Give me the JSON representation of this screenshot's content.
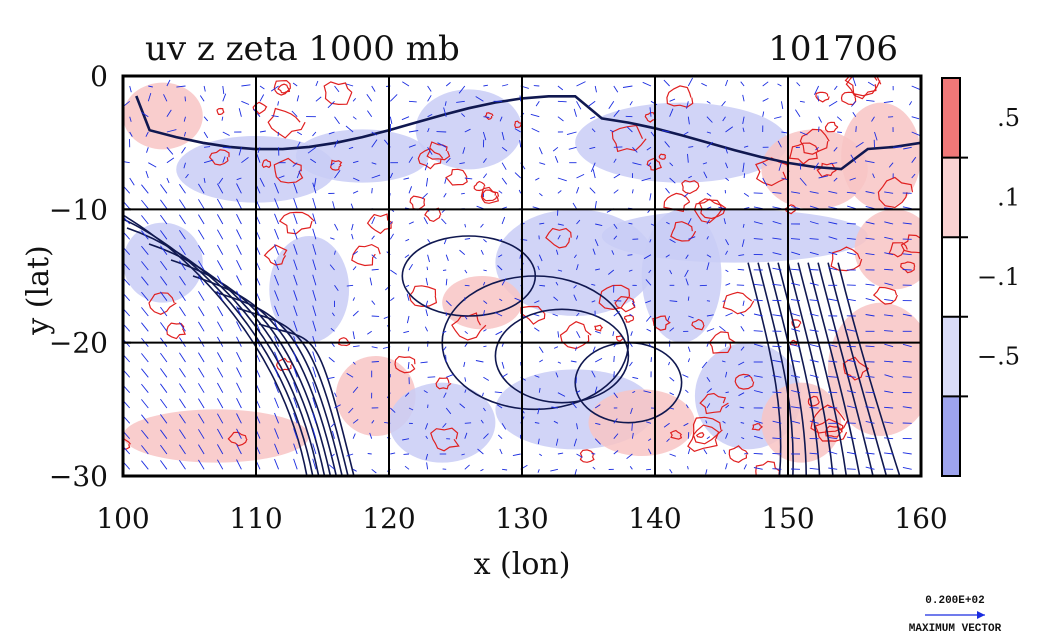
{
  "chart_data": {
    "type": "heatmap",
    "title": "uv z zeta 1000 mb",
    "title_right": "101706",
    "xlabel": "x (lon)",
    "ylabel": "y (lat)",
    "xlim": [
      100,
      160
    ],
    "ylim": [
      -30,
      0
    ],
    "x_ticks": [
      100,
      110,
      120,
      130,
      140,
      150,
      160
    ],
    "y_ticks": [
      0,
      -10,
      -20,
      -30
    ],
    "y_tick_labels": [
      "0",
      "−10",
      "−20",
      "−30"
    ],
    "grid": true,
    "colorbar": {
      "levels": [
        0.5,
        0.1,
        -0.1,
        -0.5
      ],
      "labels": [
        ".5",
        ".1",
        "−.1",
        "−.5"
      ],
      "colors": [
        "#f07878",
        "#fad2d2",
        "#ffffff",
        "#dadcf8",
        "#9ea4ee"
      ]
    },
    "vector_legend": {
      "magnitude_label": "0.200E+02",
      "caption": "MAXIMUM VECTOR"
    },
    "colors": {
      "positive_contour": "#e02020",
      "negative_fill": "#c8ccf6",
      "positive_fill": "#f8c0c0",
      "vector": "#1a2ce0",
      "height_contour": "#101850"
    }
  }
}
